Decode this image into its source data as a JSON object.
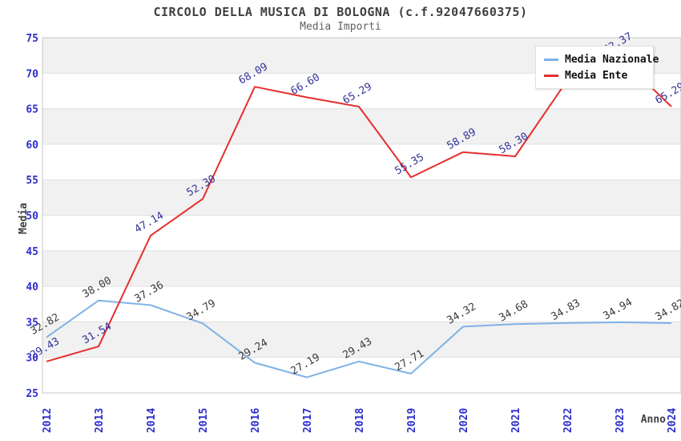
{
  "header": {
    "title": "CIRCOLO DELLA MUSICA DI BOLOGNA (c.f.92047660375)",
    "subtitle": "Media Importi"
  },
  "legend": {
    "items": [
      {
        "label": "Media Nazionale",
        "color": "#7fb2e5"
      },
      {
        "label": "Media Ente",
        "color": "#e62e2e"
      }
    ]
  },
  "chart_data": {
    "type": "line",
    "title": "CIRCOLO DELLA MUSICA DI BOLOGNA (c.f.92047660375)",
    "subtitle": "Media Importi",
    "xlabel": "Anno",
    "ylabel": "Media",
    "x": [
      "2012",
      "2013",
      "2014",
      "2015",
      "2016",
      "2017",
      "2018",
      "2019",
      "2020",
      "2021",
      "2022",
      "2023",
      "2024"
    ],
    "ylim": [
      25,
      75
    ],
    "yticks": [
      25,
      30,
      35,
      40,
      45,
      50,
      55,
      60,
      65,
      70,
      75
    ],
    "grid": true,
    "band_fill": "alternating-horizontal",
    "legend_position": "top-right",
    "series": [
      {
        "name": "Media Nazionale",
        "color": "#7fb2e5",
        "label_color": "#3c3c3c",
        "values": [
          32.82,
          38.0,
          37.36,
          34.79,
          29.24,
          27.19,
          29.43,
          27.71,
          34.32,
          34.68,
          34.83,
          34.94,
          34.82
        ],
        "labels": [
          "32.82",
          "38.00",
          "37.36",
          "34.79",
          "29.24",
          "27.19",
          "29.43",
          "27.71",
          "34.32",
          "34.68",
          "34.83",
          "34.94",
          "34.82"
        ]
      },
      {
        "name": "Media Ente",
        "color": "#e62e2e",
        "label_color": "#333399",
        "values": [
          29.43,
          31.54,
          47.14,
          52.3,
          68.09,
          66.6,
          65.29,
          55.35,
          58.89,
          58.3,
          69.0,
          72.37,
          65.29
        ],
        "labels": [
          "29.43",
          "31.54",
          "47.14",
          "52.30",
          "68.09",
          "66.60",
          "65.29",
          "55.35",
          "58.89",
          "58.30",
          "",
          "72.37",
          "65.29"
        ]
      }
    ]
  },
  "colors": {
    "tick_label": "#2e2ecc",
    "axis_title": "#404040",
    "band": "#f1f1f1",
    "gridline": "#e0e0e0",
    "plot_border": "#c8c8c8"
  }
}
